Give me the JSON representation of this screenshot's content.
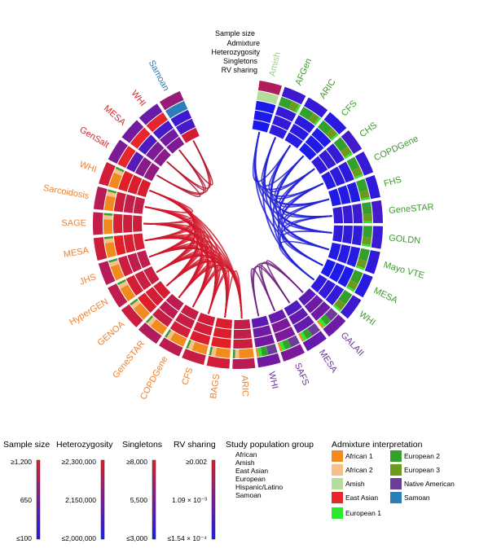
{
  "track_labels": [
    "Sample size",
    "Admixture",
    "Heterozygosity",
    "Singletons",
    "RV sharing"
  ],
  "studies": [
    {
      "name": "Amish",
      "group": "Amish"
    },
    {
      "name": "AFGen",
      "group": "European"
    },
    {
      "name": "ARIC",
      "group": "European"
    },
    {
      "name": "CFS",
      "group": "European"
    },
    {
      "name": "CHS",
      "group": "European"
    },
    {
      "name": "COPDGene",
      "group": "European"
    },
    {
      "name": "FHS",
      "group": "European"
    },
    {
      "name": "GeneSTAR",
      "group": "European"
    },
    {
      "name": "GOLDN",
      "group": "European"
    },
    {
      "name": "Mayo VTE",
      "group": "European"
    },
    {
      "name": "MESA",
      "group": "European"
    },
    {
      "name": "WHI",
      "group": "European"
    },
    {
      "name": "GALAII",
      "group": "Hispanic/Latino"
    },
    {
      "name": "MESA",
      "group": "Hispanic/Latino"
    },
    {
      "name": "SAFS",
      "group": "Hispanic/Latino"
    },
    {
      "name": "WHI",
      "group": "Hispanic/Latino"
    },
    {
      "name": "ARIC",
      "group": "African"
    },
    {
      "name": "BAGS",
      "group": "African"
    },
    {
      "name": "CFS",
      "group": "African"
    },
    {
      "name": "COPDGene",
      "group": "African"
    },
    {
      "name": "GeneSTAR",
      "group": "African"
    },
    {
      "name": "GENOA",
      "group": "African"
    },
    {
      "name": "HyperGEN",
      "group": "African"
    },
    {
      "name": "JHS",
      "group": "African"
    },
    {
      "name": "MESA",
      "group": "African"
    },
    {
      "name": "SAGE",
      "group": "African"
    },
    {
      "name": "Sarcoidosis",
      "group": "African"
    },
    {
      "name": "WHI",
      "group": "African"
    },
    {
      "name": "GenSalt",
      "group": "East Asian"
    },
    {
      "name": "MESA",
      "group": "East Asian"
    },
    {
      "name": "WHI",
      "group": "East Asian"
    },
    {
      "name": "Samoan",
      "group": "Samoan"
    }
  ],
  "legend": {
    "sample_size": {
      "title": "Sample size",
      "max": "≥1,200",
      "mid": "650",
      "min": "≤100"
    },
    "heterozygosity": {
      "title": "Heterozygosity",
      "max": "≥2,300,000",
      "mid": "2,150,000",
      "min": "≤2,000,000"
    },
    "singletons": {
      "title": "Singletons",
      "max": "≥8,000",
      "mid": "5,500",
      "min": "≤3,000"
    },
    "rv_sharing": {
      "title": "RV sharing",
      "max": "≥0.002",
      "mid": "1.09 × 10⁻³",
      "min": "≤1.54 × 10⁻⁴"
    },
    "population": {
      "title": "Study population group",
      "items": [
        {
          "label": "African",
          "color": "#f07f28"
        },
        {
          "label": "Amish",
          "color": "#9fd08a"
        },
        {
          "label": "East Asian",
          "color": "#d42a2e"
        },
        {
          "label": "European",
          "color": "#3c9a2c"
        },
        {
          "label": "Hispanic/Latino",
          "color": "#6a3795"
        },
        {
          "label": "Samoan",
          "color": "#2a7bb4"
        }
      ]
    },
    "admixture": {
      "title": "Admixture interpretation",
      "items": [
        {
          "label": "African 1",
          "color": "#f28a1e"
        },
        {
          "label": "African 2",
          "color": "#f7c08b"
        },
        {
          "label": "Amish",
          "color": "#b4dd9c"
        },
        {
          "label": "East Asian",
          "color": "#e5262b"
        },
        {
          "label": "European 1",
          "color": "#2bea2b"
        },
        {
          "label": "European 2",
          "color": "#34a02c"
        },
        {
          "label": "European 3",
          "color": "#6b9a1e"
        },
        {
          "label": "Native American",
          "color": "#6a3d9a"
        },
        {
          "label": "Samoan",
          "color": "#2a7fb8"
        }
      ]
    }
  },
  "colors": {
    "low": "#1a1aee",
    "mid": "#7a1a9a",
    "high": "#e21e26"
  }
}
